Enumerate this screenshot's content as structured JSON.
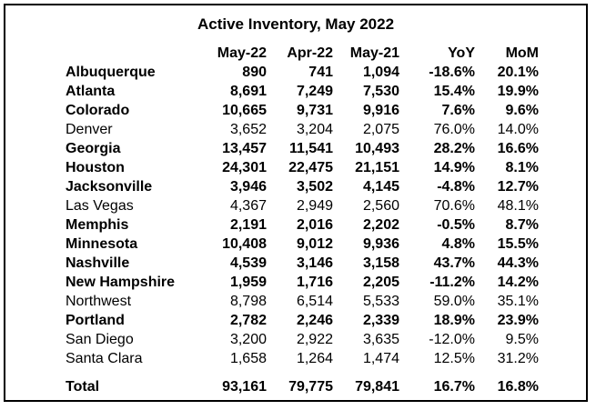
{
  "title": "Active Inventory, May 2022",
  "columns": [
    "",
    "May-22",
    "Apr-22",
    "May-21",
    "YoY",
    "MoM"
  ],
  "rows": [
    {
      "city": "Albuquerque",
      "may22": "890",
      "apr22": "741",
      "may21": "1,094",
      "yoy": "-18.6%",
      "mom": "20.1%",
      "bold": true
    },
    {
      "city": "Atlanta",
      "may22": "8,691",
      "apr22": "7,249",
      "may21": "7,530",
      "yoy": "15.4%",
      "mom": "19.9%",
      "bold": true
    },
    {
      "city": "Colorado",
      "may22": "10,665",
      "apr22": "9,731",
      "may21": "9,916",
      "yoy": "7.6%",
      "mom": "9.6%",
      "bold": true
    },
    {
      "city": "Denver",
      "may22": "3,652",
      "apr22": "3,204",
      "may21": "2,075",
      "yoy": "76.0%",
      "mom": "14.0%",
      "bold": false
    },
    {
      "city": "Georgia",
      "may22": "13,457",
      "apr22": "11,541",
      "may21": "10,493",
      "yoy": "28.2%",
      "mom": "16.6%",
      "bold": true
    },
    {
      "city": "Houston",
      "may22": "24,301",
      "apr22": "22,475",
      "may21": "21,151",
      "yoy": "14.9%",
      "mom": "8.1%",
      "bold": true
    },
    {
      "city": "Jacksonville",
      "may22": "3,946",
      "apr22": "3,502",
      "may21": "4,145",
      "yoy": "-4.8%",
      "mom": "12.7%",
      "bold": true
    },
    {
      "city": "Las Vegas",
      "may22": "4,367",
      "apr22": "2,949",
      "may21": "2,560",
      "yoy": "70.6%",
      "mom": "48.1%",
      "bold": false
    },
    {
      "city": "Memphis",
      "may22": "2,191",
      "apr22": "2,016",
      "may21": "2,202",
      "yoy": "-0.5%",
      "mom": "8.7%",
      "bold": true
    },
    {
      "city": "Minnesota",
      "may22": "10,408",
      "apr22": "9,012",
      "may21": "9,936",
      "yoy": "4.8%",
      "mom": "15.5%",
      "bold": true
    },
    {
      "city": "Nashville",
      "may22": "4,539",
      "apr22": "3,146",
      "may21": "3,158",
      "yoy": "43.7%",
      "mom": "44.3%",
      "bold": true
    },
    {
      "city": "New Hampshire",
      "may22": "1,959",
      "apr22": "1,716",
      "may21": "2,205",
      "yoy": "-11.2%",
      "mom": "14.2%",
      "bold": true
    },
    {
      "city": "Northwest",
      "may22": "8,798",
      "apr22": "6,514",
      "may21": "5,533",
      "yoy": "59.0%",
      "mom": "35.1%",
      "bold": false
    },
    {
      "city": "Portland",
      "may22": "2,782",
      "apr22": "2,246",
      "may21": "2,339",
      "yoy": "18.9%",
      "mom": "23.9%",
      "bold": true
    },
    {
      "city": "San Diego",
      "may22": "3,200",
      "apr22": "2,922",
      "may21": "3,635",
      "yoy": "-12.0%",
      "mom": "9.5%",
      "bold": false
    },
    {
      "city": "Santa Clara",
      "may22": "1,658",
      "apr22": "1,264",
      "may21": "1,474",
      "yoy": "12.5%",
      "mom": "31.2%",
      "bold": false
    }
  ],
  "total": {
    "city": "Total",
    "may22": "93,161",
    "apr22": "79,775",
    "may21": "79,841",
    "yoy": "16.7%",
    "mom": "16.8%"
  }
}
